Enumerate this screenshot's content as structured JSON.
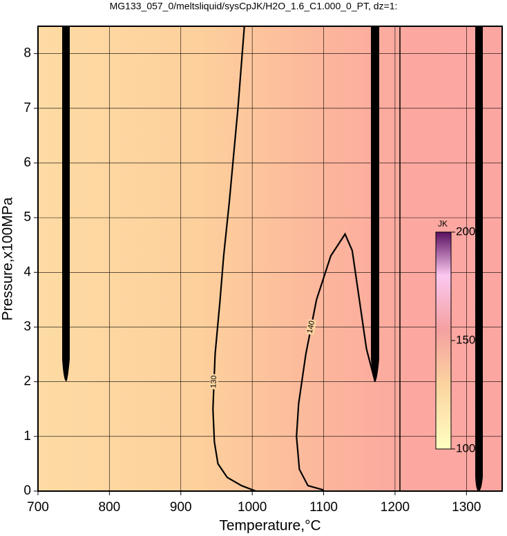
{
  "chart_data": {
    "type": "contour",
    "title": "MG133_057_0/meltsliquid/sysCpJK/H2O_1.6_C1.000_0_PT, dz=1:",
    "x_label": "Temperature,°C",
    "y_label": "Pressure,x100MPa",
    "xlim": [
      700,
      1350
    ],
    "ylim": [
      0,
      8.5
    ],
    "xticks": [
      700,
      800,
      900,
      1000,
      1100,
      1200,
      1300
    ],
    "yticks": [
      0,
      1,
      2,
      3,
      4,
      5,
      6,
      7,
      8
    ],
    "grid": true,
    "contours": [
      {
        "label": "130",
        "x": [
          989,
          980,
          968,
          960,
          955,
          948,
          945,
          947,
          952,
          965,
          985,
          1005
        ],
        "y": [
          8.5,
          7,
          5.3,
          4.3,
          3.5,
          2.5,
          1.5,
          0.9,
          0.5,
          0.25,
          0.1,
          0
        ]
      },
      {
        "label": "140",
        "x": [
          1100,
          1078,
          1066,
          1062,
          1065,
          1075,
          1090,
          1110,
          1130,
          1140,
          1150,
          1160,
          1172
        ],
        "y": [
          0.02,
          0.1,
          0.4,
          1,
          1.6,
          2.5,
          3.5,
          4.3,
          4.7,
          4.4,
          3.5,
          2.6,
          2
        ]
      }
    ],
    "colorbar": {
      "label": "JK",
      "lim": [
        100,
        200
      ],
      "ticks": [
        100,
        150,
        200
      ]
    }
  }
}
